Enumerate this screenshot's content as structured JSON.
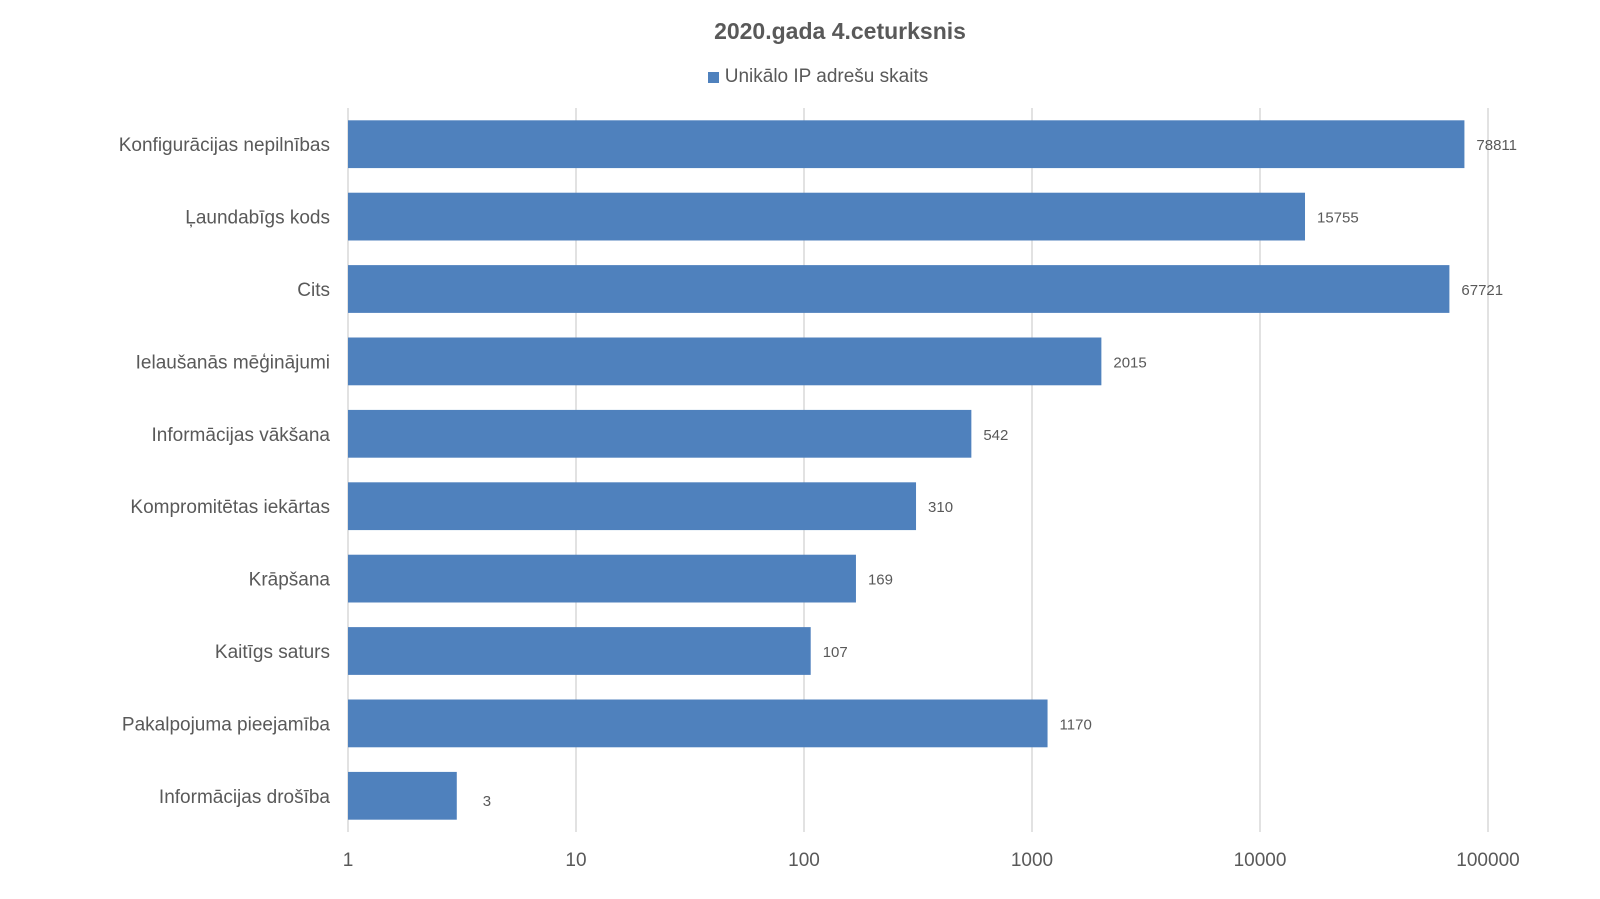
{
  "chart_data": {
    "type": "bar",
    "orientation": "horizontal",
    "title": "2020.gada  4.ceturksnis",
    "xscale": "log",
    "xlim": [
      1,
      100000
    ],
    "xticks": [
      "1",
      "10",
      "100",
      "1000",
      "10000",
      "100000"
    ],
    "grid": true,
    "legend_position": "top",
    "categories": [
      "Konfigurācijas nepilnības",
      "Ļaundabīgs kods",
      "Cits",
      "Ielaušanās mēģinājumi",
      "Informācijas vākšana",
      "Kompromitētas iekārtas",
      "Krāpšana",
      "Kaitīgs saturs",
      "Pakalpojuma pieejamība",
      "Informācijas drošība"
    ],
    "series": [
      {
        "name": "Unikālo IP adrešu skaits",
        "color": "#4f81bd",
        "values": [
          78811,
          15755,
          67721,
          2015,
          542,
          310,
          169,
          107,
          1170,
          3
        ]
      }
    ]
  }
}
